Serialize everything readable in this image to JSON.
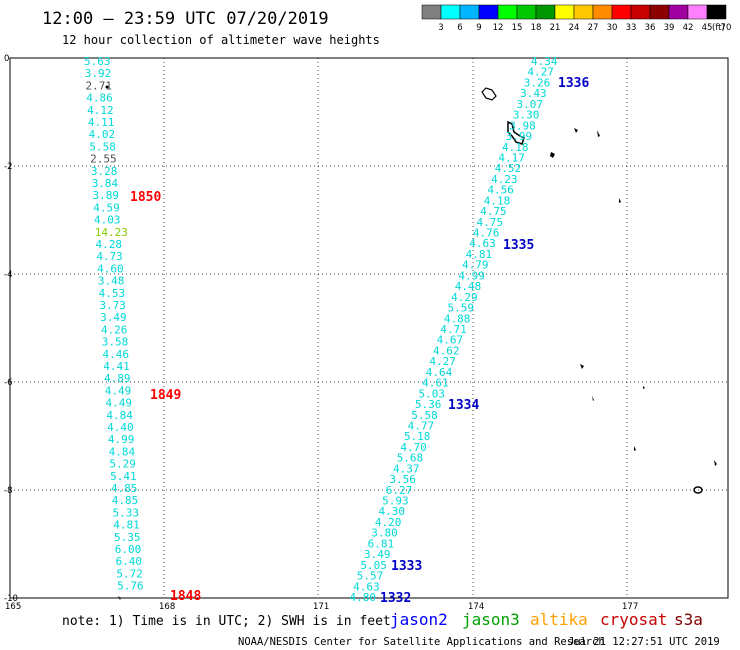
{
  "title": "12:00 — 23:59 UTC 07/20/2019",
  "subtitle": "12 hour collection of altimeter wave heights",
  "colorbar": {
    "labels": [
      "3",
      "6",
      "9",
      "12",
      "15",
      "18",
      "21",
      "24",
      "27",
      "30",
      "33",
      "36",
      "39",
      "42",
      "45",
      "70"
    ],
    "unit": "(ft)",
    "colors": [
      "#808080",
      "#00ffff",
      "#00b4ff",
      "#0000ff",
      "#00ff00",
      "#00c800",
      "#009600",
      "#ffff00",
      "#ffc800",
      "#ff8c00",
      "#ff0000",
      "#c80000",
      "#8c0000",
      "#a000a0",
      "#ff80ff",
      "#000000"
    ]
  },
  "map": {
    "lat_ticks": [
      "0",
      "-2",
      "-4",
      "-6",
      "-8",
      "-10"
    ],
    "lon_ticks": [
      "165",
      "168",
      "171",
      "174",
      "177"
    ]
  },
  "wave_colors": {
    "normal": "#00d8d8",
    "low": "#505050",
    "high": "#84cc00"
  },
  "tracks": [
    {
      "name": "west",
      "values": [
        "5.63",
        "3.92",
        "2.71",
        "4.86",
        "4.12",
        "4.11",
        "4.02",
        "5.58",
        "2.55",
        "3.28",
        "3.84",
        "3.89",
        "4.59",
        "4.03",
        "14.23",
        "4.28",
        "4.73",
        "4.60",
        "3.48",
        "4.53",
        "3.73",
        "3.49",
        "4.26",
        "3.58",
        "4.46",
        "4.41",
        "4.89",
        "4.49",
        "4.49",
        "4.84",
        "4.40",
        "4.99",
        "4.84",
        "5.29",
        "5.41",
        "4.85",
        "4.85",
        "5.33",
        "4.81",
        "5.35",
        "6.00",
        "6.40",
        "5.72",
        "5.76"
      ]
    },
    {
      "name": "east",
      "values": [
        "4.34",
        "4.27",
        "3.26",
        "3.43",
        "3.07",
        "3.30",
        "3.98",
        "3.99",
        "4.18",
        "4.17",
        "4.52",
        "4.23",
        "4.56",
        "4.18",
        "4.75",
        "4.75",
        "4.76",
        "4.63",
        "4.81",
        "4.79",
        "4.99",
        "4.48",
        "4.29",
        "5.59",
        "4.88",
        "4.71",
        "4.67",
        "4.62",
        "4.27",
        "4.64",
        "4.61",
        "5.03",
        "5.36",
        "5.58",
        "4.77",
        "5.18",
        "4.70",
        "5.68",
        "4.37",
        "3.56",
        "6.27",
        "5.93",
        "4.30",
        "4.20",
        "3.80",
        "6.81",
        "3.49",
        "5.05",
        "5.57",
        "4.63",
        "4.80"
      ]
    }
  ],
  "pass_labels": [
    {
      "text": "1850",
      "color": "#ff0000"
    },
    {
      "text": "1849",
      "color": "#ff0000"
    },
    {
      "text": "1848",
      "color": "#ff0000"
    },
    {
      "text": "1336",
      "color": "#0000c8"
    },
    {
      "text": "1335",
      "color": "#0000c8"
    },
    {
      "text": "1334",
      "color": "#0000c8"
    },
    {
      "text": "1333",
      "color": "#0000c8"
    },
    {
      "text": "1332",
      "color": "#0000c8"
    }
  ],
  "note": "note: 1) Time is in UTC; 2) SWH is in feet",
  "satellites": [
    {
      "name": "jason2",
      "color": "#0000ff"
    },
    {
      "name": "jason3",
      "color": "#00a000"
    },
    {
      "name": "altika",
      "color": "#ffa000"
    },
    {
      "name": "cryosat",
      "color": "#c80000"
    },
    {
      "name": "s3a",
      "color": "#800000"
    }
  ],
  "footer_left": "NOAA/NESDIS Center for Satellite Applications and Research",
  "footer_right": "Jul 21 12:27:51 UTC 2019"
}
